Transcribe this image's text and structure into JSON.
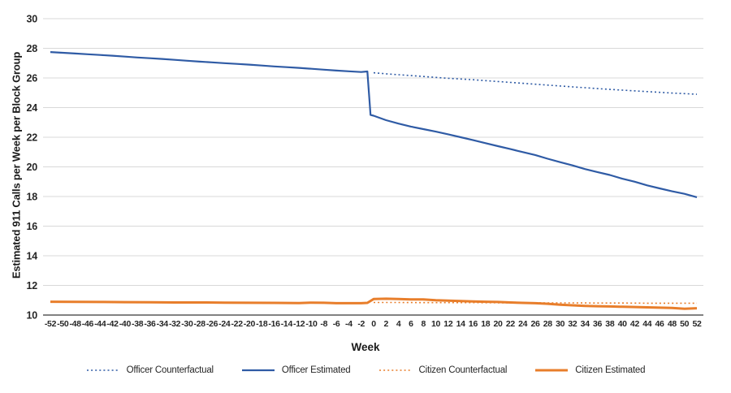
{
  "page": {
    "background": "#ffffff"
  },
  "chart_data": {
    "type": "line",
    "title": "",
    "xlabel": "Week",
    "ylabel": "Estimated 911 Calls per Week per Block Group",
    "xlim": [
      -54,
      54
    ],
    "ylim": [
      10,
      30
    ],
    "grid": "horizontal",
    "grid_color": "#d9d9d9",
    "axis_color": "#595959",
    "tick_color": "#262626",
    "legend_position": "bottom",
    "x_ticks": [
      -52,
      -50,
      -48,
      -46,
      -44,
      -42,
      -40,
      -38,
      -36,
      -34,
      -32,
      -30,
      -28,
      -26,
      -24,
      -22,
      -20,
      -18,
      -16,
      -14,
      -12,
      -10,
      -8,
      -6,
      -4,
      -2,
      0,
      2,
      4,
      6,
      8,
      10,
      12,
      14,
      16,
      18,
      20,
      22,
      24,
      26,
      28,
      30,
      32,
      34,
      36,
      38,
      40,
      42,
      44,
      46,
      48,
      50,
      52
    ],
    "y_ticks": [
      10,
      12,
      14,
      16,
      18,
      20,
      22,
      24,
      26,
      28,
      30
    ],
    "series": [
      {
        "name": "Officer Counterfactual",
        "color": "#2f5ba5",
        "style": "dotted",
        "width": 1.6,
        "points": [
          [
            0,
            26.35
          ],
          [
            2,
            26.28
          ],
          [
            4,
            26.22
          ],
          [
            6,
            26.16
          ],
          [
            8,
            26.1
          ],
          [
            10,
            26.04
          ],
          [
            12,
            25.98
          ],
          [
            14,
            25.93
          ],
          [
            16,
            25.88
          ],
          [
            18,
            25.82
          ],
          [
            20,
            25.76
          ],
          [
            22,
            25.7
          ],
          [
            24,
            25.64
          ],
          [
            26,
            25.58
          ],
          [
            28,
            25.52
          ],
          [
            30,
            25.46
          ],
          [
            32,
            25.4
          ],
          [
            34,
            25.34
          ],
          [
            36,
            25.28
          ],
          [
            38,
            25.23
          ],
          [
            40,
            25.18
          ],
          [
            42,
            25.13
          ],
          [
            44,
            25.08
          ],
          [
            46,
            25.03
          ],
          [
            48,
            24.98
          ],
          [
            50,
            24.94
          ],
          [
            52,
            24.9
          ]
        ]
      },
      {
        "name": "Officer Estimated",
        "color": "#2f5ba5",
        "style": "solid",
        "width": 2.2,
        "points": [
          [
            -52,
            27.75
          ],
          [
            -50,
            27.7
          ],
          [
            -48,
            27.65
          ],
          [
            -46,
            27.6
          ],
          [
            -44,
            27.55
          ],
          [
            -42,
            27.5
          ],
          [
            -40,
            27.44
          ],
          [
            -38,
            27.38
          ],
          [
            -36,
            27.33
          ],
          [
            -34,
            27.28
          ],
          [
            -32,
            27.22
          ],
          [
            -30,
            27.16
          ],
          [
            -28,
            27.1
          ],
          [
            -26,
            27.05
          ],
          [
            -24,
            27.0
          ],
          [
            -22,
            26.95
          ],
          [
            -20,
            26.9
          ],
          [
            -18,
            26.84
          ],
          [
            -16,
            26.78
          ],
          [
            -14,
            26.73
          ],
          [
            -12,
            26.68
          ],
          [
            -10,
            26.62
          ],
          [
            -8,
            26.56
          ],
          [
            -6,
            26.5
          ],
          [
            -4,
            26.45
          ],
          [
            -2,
            26.4
          ],
          [
            -1,
            26.44
          ],
          [
            -0.5,
            23.5
          ],
          [
            0,
            23.45
          ],
          [
            2,
            23.15
          ],
          [
            4,
            22.92
          ],
          [
            6,
            22.72
          ],
          [
            8,
            22.55
          ],
          [
            10,
            22.38
          ],
          [
            12,
            22.2
          ],
          [
            14,
            22.0
          ],
          [
            16,
            21.8
          ],
          [
            18,
            21.6
          ],
          [
            20,
            21.4
          ],
          [
            22,
            21.2
          ],
          [
            24,
            21.0
          ],
          [
            26,
            20.8
          ],
          [
            28,
            20.55
          ],
          [
            30,
            20.32
          ],
          [
            32,
            20.1
          ],
          [
            34,
            19.85
          ],
          [
            36,
            19.65
          ],
          [
            38,
            19.45
          ],
          [
            40,
            19.2
          ],
          [
            42,
            19.0
          ],
          [
            44,
            18.75
          ],
          [
            46,
            18.55
          ],
          [
            48,
            18.35
          ],
          [
            50,
            18.18
          ],
          [
            52,
            17.95
          ]
        ]
      },
      {
        "name": "Citizen Counterfactual",
        "color": "#e87e2b",
        "style": "dotted",
        "width": 1.6,
        "points": [
          [
            0,
            10.85
          ],
          [
            4,
            10.85
          ],
          [
            8,
            10.84
          ],
          [
            12,
            10.84
          ],
          [
            16,
            10.84
          ],
          [
            20,
            10.83
          ],
          [
            24,
            10.83
          ],
          [
            28,
            10.82
          ],
          [
            32,
            10.82
          ],
          [
            36,
            10.81
          ],
          [
            40,
            10.81
          ],
          [
            44,
            10.8
          ],
          [
            48,
            10.8
          ],
          [
            52,
            10.8
          ]
        ]
      },
      {
        "name": "Citizen Estimated",
        "color": "#e87e2b",
        "style": "solid",
        "width": 3,
        "points": [
          [
            -52,
            10.9
          ],
          [
            -48,
            10.89
          ],
          [
            -44,
            10.88
          ],
          [
            -40,
            10.87
          ],
          [
            -36,
            10.86
          ],
          [
            -32,
            10.85
          ],
          [
            -28,
            10.85
          ],
          [
            -24,
            10.84
          ],
          [
            -20,
            10.83
          ],
          [
            -16,
            10.82
          ],
          [
            -12,
            10.81
          ],
          [
            -10,
            10.84
          ],
          [
            -8,
            10.83
          ],
          [
            -6,
            10.8
          ],
          [
            -4,
            10.8
          ],
          [
            -2,
            10.8
          ],
          [
            -1,
            10.82
          ],
          [
            0,
            11.08
          ],
          [
            2,
            11.1
          ],
          [
            4,
            11.08
          ],
          [
            6,
            11.06
          ],
          [
            8,
            11.05
          ],
          [
            10,
            11.0
          ],
          [
            12,
            10.97
          ],
          [
            14,
            10.95
          ],
          [
            16,
            10.92
          ],
          [
            18,
            10.9
          ],
          [
            20,
            10.88
          ],
          [
            22,
            10.85
          ],
          [
            24,
            10.82
          ],
          [
            26,
            10.8
          ],
          [
            28,
            10.76
          ],
          [
            30,
            10.7
          ],
          [
            32,
            10.66
          ],
          [
            34,
            10.62
          ],
          [
            36,
            10.6
          ],
          [
            38,
            10.58
          ],
          [
            40,
            10.56
          ],
          [
            42,
            10.54
          ],
          [
            44,
            10.52
          ],
          [
            46,
            10.5
          ],
          [
            48,
            10.48
          ],
          [
            50,
            10.42
          ],
          [
            52,
            10.46
          ]
        ]
      }
    ]
  }
}
